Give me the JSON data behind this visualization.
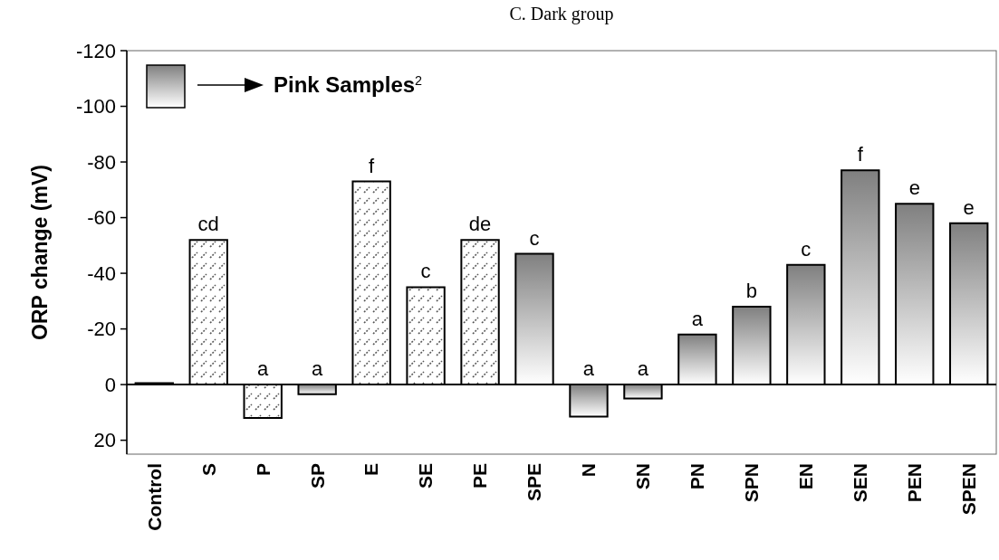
{
  "chart_data": {
    "type": "bar",
    "title": "C. Dark group",
    "ylabel": "ORP change (mV)",
    "categories": [
      "Control",
      "S",
      "P",
      "SP",
      "E",
      "SE",
      "PE",
      "SPE",
      "N",
      "SN",
      "PN",
      "SPN",
      "EN",
      "SEN",
      "PEN",
      "SPEN"
    ],
    "stacked": true,
    "series": [
      {
        "color": "#555555",
        "values": [
          null,
          -52,
          12,
          null,
          -73,
          -35,
          -52,
          null,
          null,
          null,
          null,
          null,
          null,
          null,
          null,
          null
        ],
        "value_labels": [
          null,
          "cd",
          "a",
          null,
          "f",
          "c",
          "de",
          null,
          null,
          null,
          null,
          null,
          null,
          null,
          null,
          null
        ]
      },
      {
        "name": "Pink Samples$^{2}$",
        "color": "#808080",
        "values": [
          -0.5,
          null,
          null,
          3.5,
          null,
          null,
          null,
          -47,
          11.5,
          5,
          -18,
          -28,
          -43,
          -77,
          -65,
          -58
        ],
        "value_labels": [
          null,
          null,
          null,
          "a",
          null,
          null,
          null,
          "c",
          "a",
          "a",
          "a",
          "b",
          "c",
          "f",
          "e",
          "e"
        ]
      }
    ],
    "ylim": [
      25,
      -120
    ],
    "yticks": [
      -120,
      -100,
      -80,
      -60,
      -40,
      -20,
      0,
      20
    ],
    "legend": "top left"
  }
}
